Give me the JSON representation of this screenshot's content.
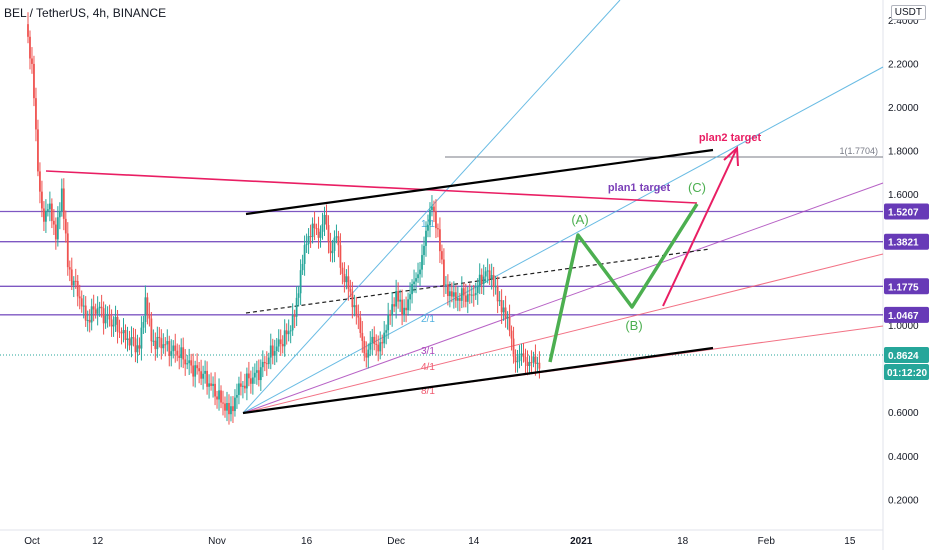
{
  "header": {
    "symbol_title": "BEL / TetherUS, 4h, BINANCE",
    "currency": "USDT"
  },
  "chart_data": {
    "type": "candlestick",
    "y_range": [
      0.08,
      2.4
    ],
    "x_range_days": [
      0,
      130
    ],
    "y_ticks": [
      "2.4000",
      "2.2000",
      "2.0000",
      "1.8000",
      "1.6000",
      "1.0000",
      "0.6000",
      "0.4000",
      "0.2000"
    ],
    "x_ticks": [
      {
        "label": "Oct",
        "day": 1
      },
      {
        "label": "12",
        "day": 12
      },
      {
        "label": "Nov",
        "day": 32
      },
      {
        "label": "16",
        "day": 47
      },
      {
        "label": "Dec",
        "day": 62
      },
      {
        "label": "14",
        "day": 75
      },
      {
        "label": "2021",
        "day": 93
      },
      {
        "label": "18",
        "day": 110
      },
      {
        "label": "Feb",
        "day": 124
      },
      {
        "label": "15",
        "day": 138
      }
    ],
    "horizontal_levels": [
      {
        "value": 1.5207,
        "label": "1.5207"
      },
      {
        "value": 1.3821,
        "label": "1.3821"
      },
      {
        "value": 1.1775,
        "label": "1.1775"
      },
      {
        "value": 1.0467,
        "label": "1.0467"
      }
    ],
    "fib_level": {
      "value": 1.7704,
      "label": "1(1.7704)"
    },
    "last_price": {
      "value": 0.8624,
      "label": "0.8624",
      "countdown": "01:12:20"
    },
    "price_path": [
      [
        0,
        2.38
      ],
      [
        1,
        2.2
      ],
      [
        2,
        1.7
      ],
      [
        3,
        1.48
      ],
      [
        4,
        1.55
      ],
      [
        5,
        1.4
      ],
      [
        6,
        1.62
      ],
      [
        7,
        1.27
      ],
      [
        9,
        1.12
      ],
      [
        10,
        1.02
      ],
      [
        12,
        1.08
      ],
      [
        14,
        1.02
      ],
      [
        16,
        0.97
      ],
      [
        17,
        0.93
      ],
      [
        19,
        0.9
      ],
      [
        20,
        1.12
      ],
      [
        21,
        0.93
      ],
      [
        23,
        0.91
      ],
      [
        25,
        0.88
      ],
      [
        27,
        0.83
      ],
      [
        29,
        0.78
      ],
      [
        31,
        0.73
      ],
      [
        33,
        0.63
      ],
      [
        34,
        0.6
      ],
      [
        35,
        0.66
      ],
      [
        36,
        0.72
      ],
      [
        38,
        0.76
      ],
      [
        40,
        0.82
      ],
      [
        42,
        0.91
      ],
      [
        44,
        0.96
      ],
      [
        45,
        1.05
      ],
      [
        46,
        1.24
      ],
      [
        47,
        1.38
      ],
      [
        48,
        1.46
      ],
      [
        49,
        1.4
      ],
      [
        50,
        1.51
      ],
      [
        51,
        1.32
      ],
      [
        52,
        1.42
      ],
      [
        53,
        1.22
      ],
      [
        54,
        1.18
      ],
      [
        55,
        1.08
      ],
      [
        56,
        0.97
      ],
      [
        57,
        0.85
      ],
      [
        58,
        0.94
      ],
      [
        59,
        0.89
      ],
      [
        60,
        0.95
      ],
      [
        61,
        1.06
      ],
      [
        62,
        1.14
      ],
      [
        63,
        1.06
      ],
      [
        64,
        1.11
      ],
      [
        65,
        1.2
      ],
      [
        66,
        1.26
      ],
      [
        67,
        1.42
      ],
      [
        68,
        1.56
      ],
      [
        69,
        1.42
      ],
      [
        70,
        1.2
      ],
      [
        71,
        1.14
      ],
      [
        72,
        1.12
      ],
      [
        74,
        1.14
      ],
      [
        75,
        1.13
      ],
      [
        77,
        1.26
      ],
      [
        78,
        1.21
      ],
      [
        79,
        1.13
      ],
      [
        80,
        1.06
      ],
      [
        81,
        0.99
      ],
      [
        82,
        0.82
      ],
      [
        83,
        0.87
      ],
      [
        84,
        0.82
      ],
      [
        85,
        0.84
      ],
      [
        86,
        0.8
      ]
    ],
    "annotations": {
      "plan1_label": "plan1 target",
      "plan2_label": "plan2 target",
      "wave_a": "(A)",
      "wave_b": "(B)",
      "wave_c": "(C)",
      "fan_1_1": "1/1",
      "fan_2_1": "2/1",
      "fan_3_1": "3/1",
      "fan_4_1": "4/1",
      "fan_8_1": "8/1"
    },
    "colors": {
      "up": "#26a69a",
      "down": "#ef5350",
      "level_line": "#7e57c2",
      "level_badge": "#673ab7",
      "wave_path": "#4caf50",
      "plan2_arrow": "#e91e63",
      "fan_blue": "#4fb0df",
      "fan_purple": "#ab47bc",
      "fan_red": "#f05a70",
      "fib_line": "#787b86"
    }
  }
}
